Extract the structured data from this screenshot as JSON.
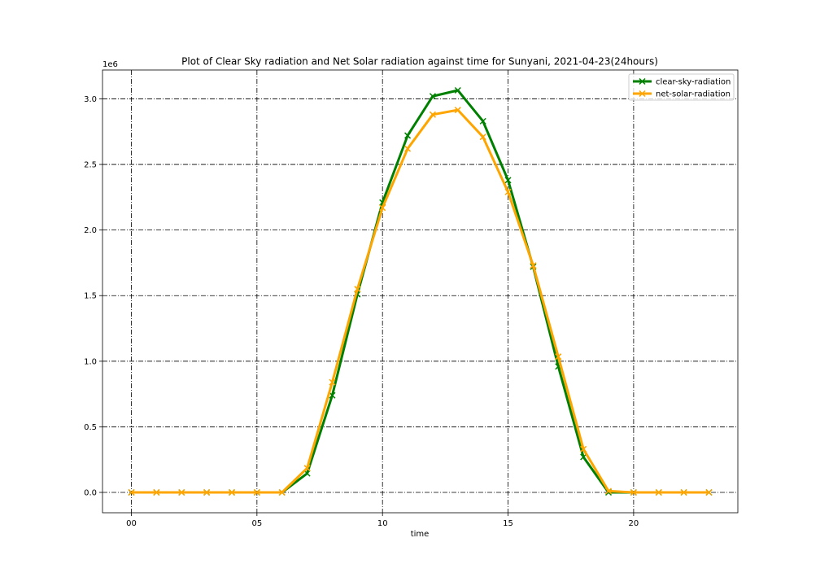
{
  "chart_data": {
    "type": "line",
    "title": "Plot of Clear Sky radiation and Net Solar radiation against time for Sunyani, 2021-04-23(24hours)",
    "xlabel": "time",
    "ylabel": "",
    "y_offset_label": "1e6",
    "x": [
      0,
      1,
      2,
      3,
      4,
      5,
      6,
      7,
      8,
      9,
      10,
      11,
      12,
      13,
      14,
      15,
      16,
      17,
      18,
      19,
      20,
      21,
      22,
      23
    ],
    "x_ticks": [
      0,
      5,
      10,
      15,
      20
    ],
    "x_tick_labels": [
      "00",
      "05",
      "10",
      "15",
      "20"
    ],
    "y_ticks": [
      0.0,
      0.5,
      1.0,
      1.5,
      2.0,
      2.5,
      3.0
    ],
    "y_tick_labels": [
      "0.0",
      "0.5",
      "1.0",
      "1.5",
      "2.0",
      "2.5",
      "3.0"
    ],
    "xlim": [
      -1.15,
      24.15
    ],
    "ylim": [
      -0.155,
      3.22
    ],
    "grid": true,
    "legend_position": "top-right",
    "series": [
      {
        "name": "clear-sky-radiation",
        "color": "#008000",
        "marker": "x",
        "values": [
          0,
          0,
          0,
          0,
          0,
          0,
          0,
          0.145,
          0.74,
          1.51,
          2.21,
          2.72,
          3.02,
          3.065,
          2.83,
          2.38,
          1.72,
          0.96,
          0.27,
          0,
          0,
          0,
          0,
          0
        ]
      },
      {
        "name": "net-solar-radiation",
        "color": "#FFA500",
        "marker": "x",
        "values": [
          0,
          0,
          0,
          0,
          0,
          0,
          0,
          0.185,
          0.84,
          1.55,
          2.17,
          2.62,
          2.88,
          2.915,
          2.71,
          2.29,
          1.73,
          1.035,
          0.33,
          0.01,
          0,
          0,
          0,
          0
        ]
      }
    ]
  }
}
